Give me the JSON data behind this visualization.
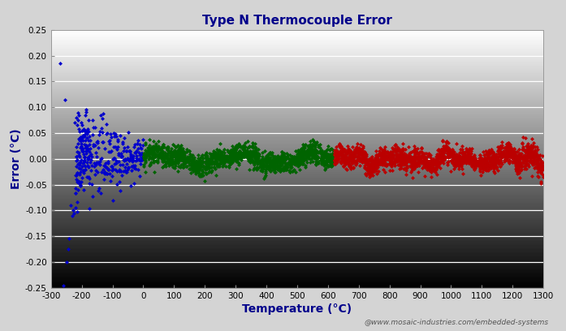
{
  "title": "Type N Thermocouple Error",
  "xlabel": "Temperature (°C)",
  "ylabel": "Error (°C)",
  "xlim": [
    -300,
    1300
  ],
  "ylim": [
    -0.25,
    0.25
  ],
  "xticks": [
    -300,
    -200,
    -100,
    0,
    100,
    200,
    300,
    400,
    500,
    600,
    700,
    800,
    900,
    1000,
    1100,
    1200,
    1300
  ],
  "yticks": [
    -0.25,
    -0.2,
    -0.15,
    -0.1,
    -0.05,
    0.0,
    0.05,
    0.1,
    0.15,
    0.2,
    0.25
  ],
  "background_color": "#d4d4d4",
  "title_color": "#00008B",
  "label_color": "#00008B",
  "watermark": "@www.mosaic-industries.com/embedded-systems",
  "blue_color": "#0000CC",
  "green_color": "#006400",
  "red_color": "#BB0000",
  "markersize": 2.5
}
